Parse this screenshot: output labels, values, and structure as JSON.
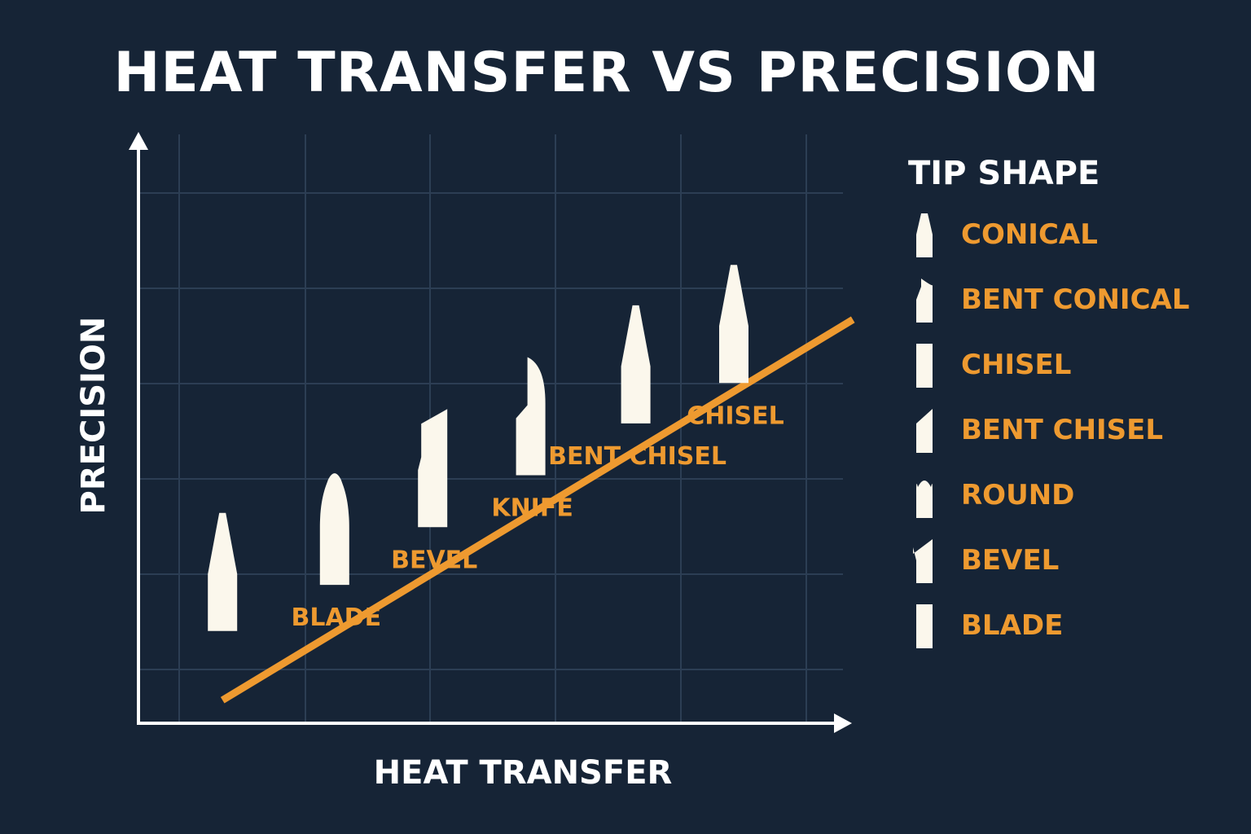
{
  "title": "HEAT TRANSFER VS PRECISION",
  "colors": {
    "background": "#162436",
    "grid": "#2c3e54",
    "axis": "#ffffff",
    "trend": "#ee9a30",
    "tip": "#fbf7ec",
    "label": "#ee9a30"
  },
  "chart_data": {
    "type": "scatter",
    "title": "HEAT TRANSFER VS PRECISION",
    "xlabel": "HEAT TRANSFER",
    "ylabel": "PRECISION",
    "xlim": [
      0,
      10
    ],
    "ylim": [
      0,
      10
    ],
    "grid": true,
    "legend_position": "right",
    "points": [
      {
        "label": "",
        "shape": "conical",
        "x": 1.2,
        "y": 1.6
      },
      {
        "label": "BLADE",
        "shape": "round",
        "x": 2.8,
        "y": 2.4
      },
      {
        "label": "BEVEL",
        "shape": "bevel",
        "x": 4.2,
        "y": 3.4
      },
      {
        "label": "KNIFE",
        "shape": "bent_conical",
        "x": 5.6,
        "y": 4.3
      },
      {
        "label": "BENT CHISEL",
        "shape": "conical",
        "x": 7.1,
        "y": 5.2
      },
      {
        "label": "CHISEL",
        "shape": "conical",
        "x": 8.5,
        "y": 5.9
      }
    ],
    "trend_line": {
      "x": [
        1.2,
        10.2
      ],
      "y": [
        0.4,
        7.0
      ]
    }
  },
  "legend": {
    "title": "TIP SHAPE",
    "items": [
      {
        "label": "CONICAL",
        "shape": "conical"
      },
      {
        "label": "BENT CONICAL",
        "shape": "bent_conical"
      },
      {
        "label": "CHISEL",
        "shape": "chisel"
      },
      {
        "label": "BENT CHISEL",
        "shape": "bent_chisel"
      },
      {
        "label": "ROUND",
        "shape": "round"
      },
      {
        "label": "BEVEL",
        "shape": "bevel"
      },
      {
        "label": "BLADE",
        "shape": "blade"
      }
    ]
  }
}
